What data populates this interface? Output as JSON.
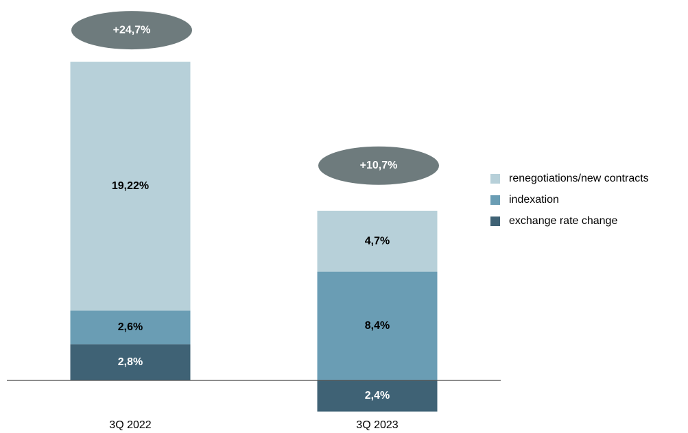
{
  "chart_data": {
    "type": "stacked_bar",
    "categories": [
      "3Q 2022",
      "3Q 2023"
    ],
    "series": [
      {
        "name": "renegotiations/new contracts",
        "color": "#b7d0d9",
        "values": [
          19.22,
          4.7
        ],
        "value_labels": [
          "19,22%",
          "4,7%"
        ],
        "label_color": "#000000"
      },
      {
        "name": "indexation",
        "color": "#6a9db4",
        "values": [
          2.6,
          8.4
        ],
        "value_labels": [
          "2,6%",
          "8,4%"
        ],
        "label_color": "#000000"
      },
      {
        "name": "exchange rate change",
        "color": "#3f6275",
        "values": [
          2.8,
          -2.4
        ],
        "value_labels": [
          "2,8%",
          "2,4%"
        ],
        "label_color": "#ffffff"
      }
    ],
    "totals": [
      24.7,
      10.7
    ],
    "total_labels": [
      "+24,7%",
      "+10,7%"
    ],
    "total_color": "#6e7b7d",
    "ylim": [
      -3,
      26
    ],
    "legend": "right"
  }
}
